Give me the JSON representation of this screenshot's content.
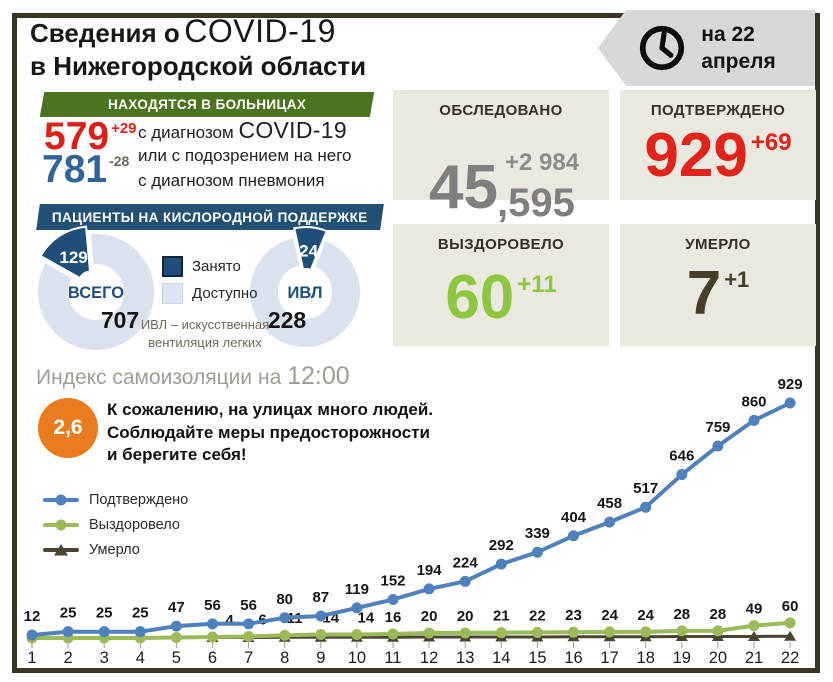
{
  "header": {
    "title_prefix": "Сведения о",
    "title_covid": "COVID-19",
    "title_line2": "в Нижегородской области",
    "date_banner": {
      "line1": "на 22",
      "line2": "апреля"
    }
  },
  "hospital": {
    "banner": "НАХОДЯТСЯ В БОЛЬНИЦАХ",
    "covid_row": {
      "value": "579",
      "delta": "+29",
      "delta_color": "#dd2017",
      "desc_prefix": "с диагнозом",
      "desc_covid": "COVID-19",
      "desc_line2": "или с подозрением на него"
    },
    "pneumonia_row": {
      "value": "781",
      "delta": "-28",
      "delta_color": "#6b655b",
      "desc": "с диагнозом пневмония"
    }
  },
  "oxygen": {
    "banner": "ПАЦИЕНТЫ НА КИСЛОРОДНОЙ ПОДДЕРЖКЕ",
    "legend": [
      {
        "label": "Занято",
        "color": "#1f4e79"
      },
      {
        "label": "Доступно",
        "color": "#dce6f2"
      }
    ],
    "donuts": [
      {
        "label": "ВСЕГО",
        "occupied": 129,
        "available": 707
      },
      {
        "label": "ИВЛ",
        "occupied": 24,
        "available": 228
      }
    ],
    "note_line1": "ИВЛ – искусственная",
    "note_line2": "вентиляция легких"
  },
  "cards": [
    {
      "title": "ОБСЛЕДОВАНО",
      "value_main": "45",
      "value_decimal": ",595",
      "delta": "+2 984",
      "color": "#7f7f7f"
    },
    {
      "title": "ПОДТВЕРЖДЕНО",
      "value": "929",
      "delta": "+69",
      "color": "#e2231a"
    },
    {
      "title": "ВЫЗДОРОВЕЛО",
      "value": "60",
      "delta": "+11",
      "color": "#8dc63f"
    },
    {
      "title": "УМЕРЛО",
      "value": "7",
      "delta": "+1",
      "color": "#453f28"
    }
  ],
  "isolation": {
    "heading_prefix": "Индекс самоизоляции на",
    "heading_time": "12:00",
    "index_value": "2,6",
    "message_lines": [
      "К сожалению, на улицах много людей.",
      "Соблюдайте меры предосторожности",
      "и берегите себя!"
    ]
  },
  "chart_data": {
    "type": "line",
    "x": [
      1,
      2,
      3,
      4,
      5,
      6,
      7,
      8,
      9,
      10,
      11,
      12,
      13,
      14,
      15,
      16,
      17,
      18,
      19,
      20,
      21,
      22
    ],
    "xlim": [
      1,
      22
    ],
    "ylim": [
      0,
      960
    ],
    "grid": false,
    "legend_position": "left-middle",
    "series": [
      {
        "name": "Подтверждено",
        "color": "#4f81bd",
        "marker": "circle",
        "values": [
          12,
          25,
          25,
          25,
          47,
          56,
          56,
          80,
          87,
          119,
          152,
          194,
          224,
          292,
          339,
          404,
          458,
          517,
          646,
          759,
          860,
          929
        ],
        "labels_shown_from_x": 1
      },
      {
        "name": "Выздоровело",
        "color": "#9bbb59",
        "marker": "circle",
        "values": [
          0,
          0,
          0,
          0,
          2,
          4,
          6,
          11,
          14,
          14,
          16,
          20,
          20,
          21,
          22,
          23,
          24,
          24,
          28,
          28,
          49,
          60
        ],
        "labels_shown_from_x": 6,
        "unlabeled_values_estimated": true
      },
      {
        "name": "Умерло",
        "color": "#4a4430",
        "marker": "triangle",
        "values": [
          null,
          null,
          null,
          null,
          null,
          2,
          2,
          3,
          3,
          3,
          3,
          4,
          4,
          4,
          4,
          5,
          5,
          5,
          6,
          6,
          6,
          7
        ],
        "labels_shown_from_x": null,
        "values_estimated": true
      }
    ]
  }
}
